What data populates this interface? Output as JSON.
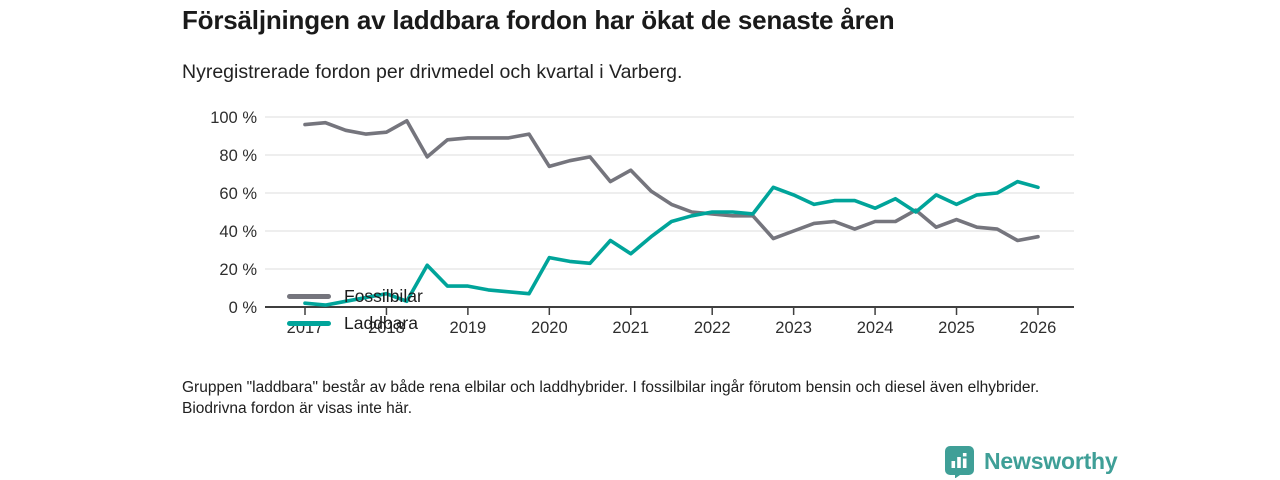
{
  "header": {
    "title": "Försäljningen av laddbara fordon har ökat de senaste åren",
    "subtitle": "Nyregistrerade fordon per drivmedel och kvartal i Varberg."
  },
  "chart_data": {
    "type": "line",
    "x_frequency": "quarterly",
    "categories": [
      "2017 Q1",
      "2017 Q2",
      "2017 Q3",
      "2017 Q4",
      "2018 Q1",
      "2018 Q2",
      "2018 Q3",
      "2018 Q4",
      "2019 Q1",
      "2019 Q2",
      "2019 Q3",
      "2019 Q4",
      "2020 Q1",
      "2020 Q2",
      "2020 Q3",
      "2020 Q4",
      "2021 Q1",
      "2021 Q2",
      "2021 Q3",
      "2021 Q4",
      "2022 Q1",
      "2022 Q2",
      "2022 Q3",
      "2022 Q4",
      "2023 Q1",
      "2023 Q2",
      "2023 Q3",
      "2023 Q4",
      "2024 Q1",
      "2024 Q2",
      "2024 Q3",
      "2024 Q4",
      "2025 Q1",
      "2025 Q2",
      "2025 Q3",
      "2025 Q4",
      "2026 Q1"
    ],
    "series": [
      {
        "name": "Fossilbilar",
        "color": "#75757d",
        "values": [
          96,
          97,
          93,
          91,
          92,
          98,
          79,
          88,
          89,
          89,
          89,
          91,
          74,
          77,
          79,
          66,
          72,
          61,
          54,
          50,
          49,
          48,
          48,
          36,
          40,
          44,
          45,
          41,
          45,
          45,
          51,
          42,
          46,
          42,
          41,
          35,
          37
        ]
      },
      {
        "name": "Laddbara",
        "color": "#00a49a",
        "values": [
          2,
          1,
          3,
          5,
          7,
          3,
          22,
          11,
          11,
          9,
          8,
          7,
          26,
          24,
          23,
          35,
          28,
          37,
          45,
          48,
          50,
          50,
          49,
          63,
          59,
          54,
          56,
          56,
          52,
          57,
          50,
          59,
          54,
          59,
          60,
          66,
          63
        ]
      }
    ],
    "xticks": [
      "2017",
      "2018",
      "2019",
      "2020",
      "2021",
      "2022",
      "2023",
      "2024",
      "2025",
      "2026"
    ],
    "yticks": {
      "values": [
        0,
        20,
        40,
        60,
        80,
        100
      ],
      "labels": [
        "0 %",
        "20 %",
        "40 %",
        "60 %",
        "80 %",
        "100 %"
      ]
    },
    "unit": "%",
    "ylim": [
      0,
      100
    ],
    "grid": "horizontal",
    "legend_position": "inside-top-left"
  },
  "footer": {
    "note": "Gruppen \"laddbara\" består av både rena elbilar och laddhybrider. I fossilbilar ingår förutom bensin och diesel även elhybrider. Biodrivna fordon är visas inte här."
  },
  "logo": {
    "wordmark": "Newsworthy",
    "color": "#3f9f97",
    "icon": "bar-chart-pin-icon"
  }
}
